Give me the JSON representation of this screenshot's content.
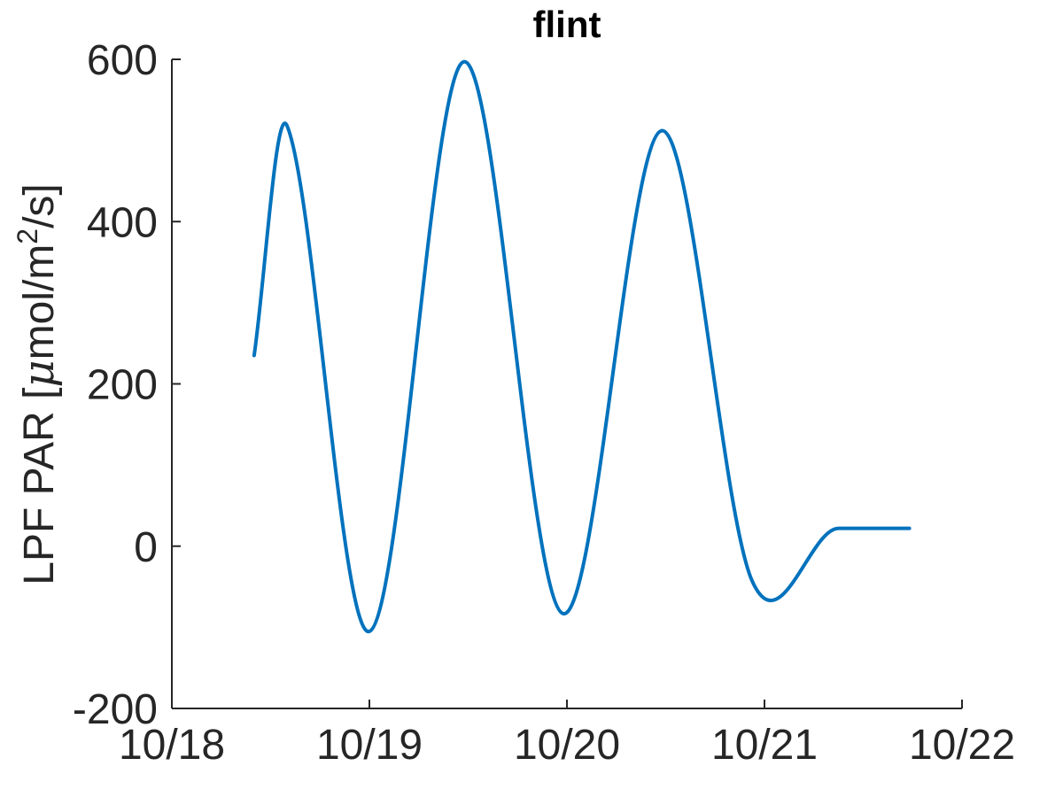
{
  "chart_data": {
    "type": "line",
    "title": "flint",
    "ylabel": "LPF PAR [μmol/m²/s]",
    "ylabel_parts": {
      "pre": "LPF PAR [",
      "mu": "μ",
      "unit": "mol/m",
      "sup": "2",
      "post": "/s]"
    },
    "xlabel": "",
    "xlim": [
      "10/18",
      "10/22"
    ],
    "ylim": [
      -200,
      600
    ],
    "x_ticks": [
      "10/18",
      "10/19",
      "10/20",
      "10/21",
      "10/22"
    ],
    "y_ticks": [
      "600",
      "400",
      "200",
      "0",
      "-200"
    ],
    "y_tick_values": [
      600,
      400,
      200,
      0,
      -200
    ],
    "grid": false,
    "legend": "none",
    "color": "#0072BD",
    "series": [
      {
        "x": [
          "10/18 10:00",
          "10/18 14:00",
          "10/19 00:00",
          "10/19 11:30",
          "10/19 23:30",
          "10/20 11:30",
          "10/20 22:30",
          "10/21 09:00"
        ],
        "values": [
          235,
          518,
          -105,
          597,
          -83,
          512,
          -43,
          22
        ]
      }
    ]
  }
}
